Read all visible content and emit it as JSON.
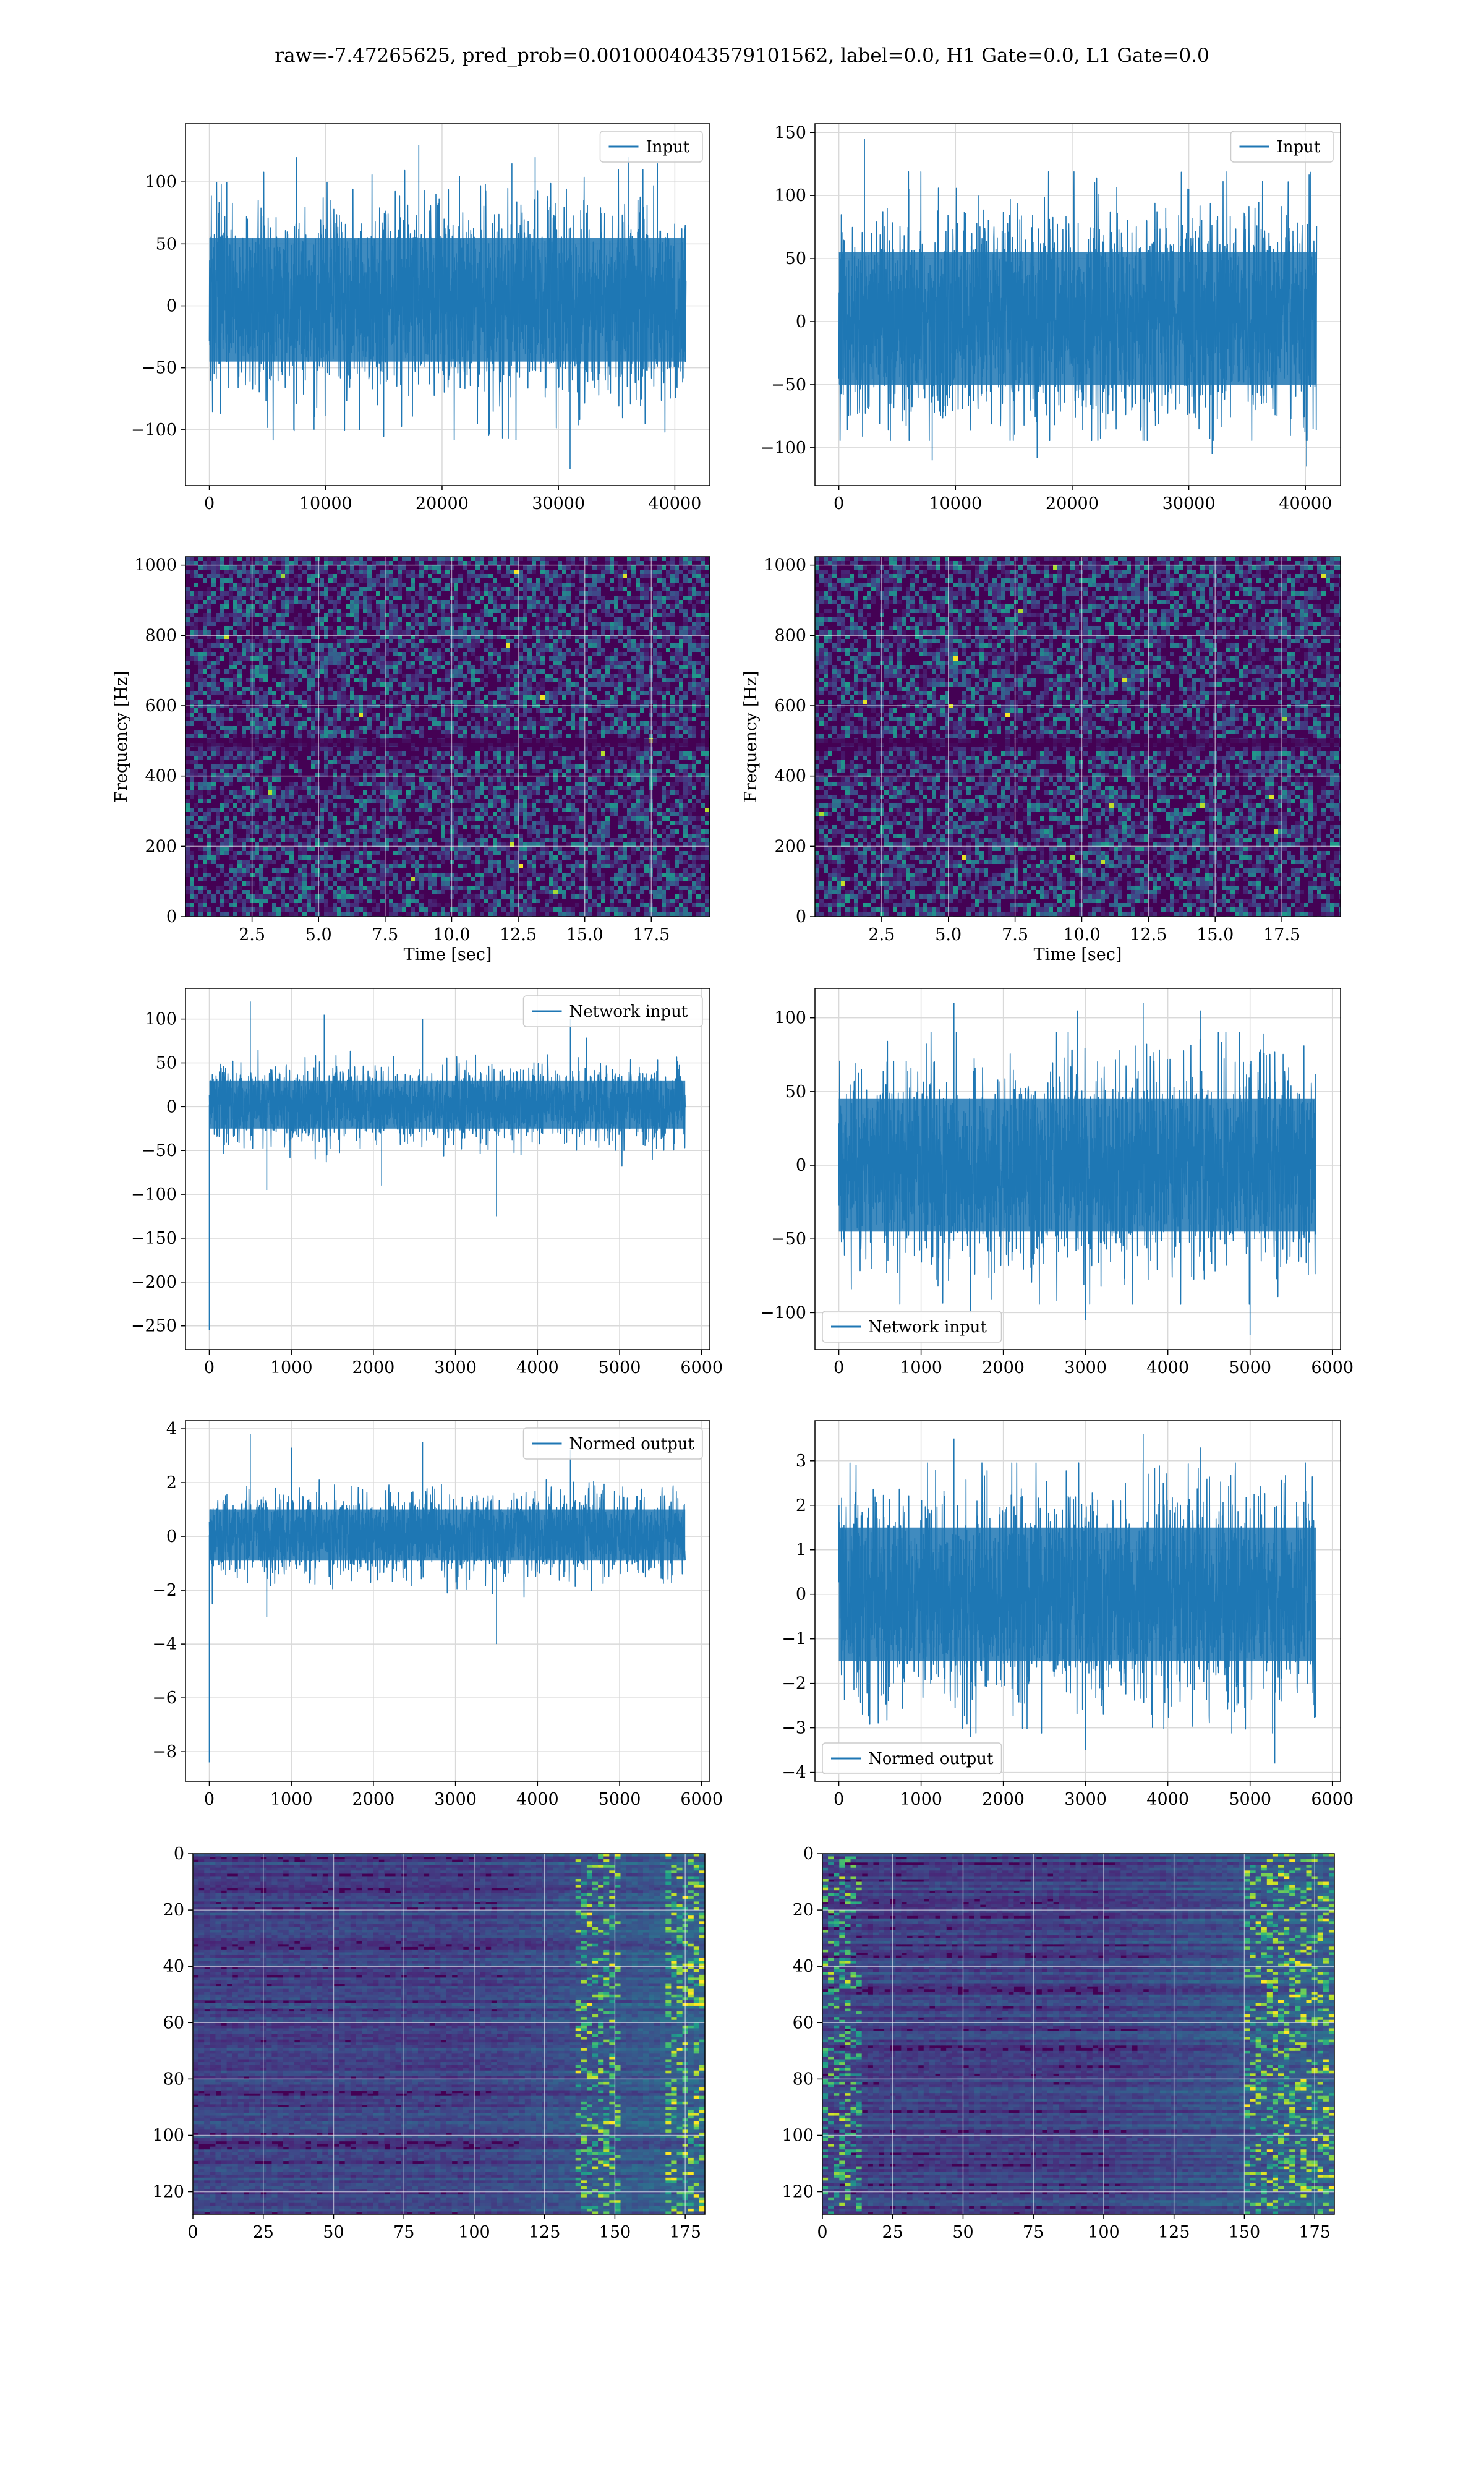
{
  "figure": {
    "title": "raw=-7.47265625, pred_prob=0.0010004043579101562, label=0.0, H1 Gate=0.0, L1 Gate=0.0"
  },
  "colors": {
    "line": "#1f77b4",
    "grid": "#d9d9d9",
    "viridis_dark": "#440154",
    "viridis_mid": "#21918c",
    "viridis_light": "#fde725"
  },
  "chart_data": [
    {
      "id": "r0c0",
      "type": "line",
      "legend": "Input",
      "legend_loc": "top-right",
      "grid": true,
      "x_range": [
        0,
        40960
      ],
      "xlim": [
        -2048,
        43008
      ],
      "ylim": [
        -145,
        147
      ],
      "x_ticks": [
        0,
        10000,
        20000,
        30000,
        40000
      ],
      "x_tick_labels": [
        "0",
        "10000",
        "20000",
        "30000",
        "40000"
      ],
      "y_ticks": [
        -100,
        -50,
        0,
        50,
        100
      ],
      "y_tick_labels": [
        "−100",
        "−50",
        "0",
        "50",
        "100"
      ],
      "envelope": {
        "core": [
          -45,
          55
        ],
        "peak": [
          -132,
          134
        ]
      },
      "spikes": [
        [
          1500,
          100
        ],
        [
          7500,
          120
        ],
        [
          18000,
          130
        ],
        [
          21500,
          105
        ],
        [
          26000,
          115
        ],
        [
          28000,
          120
        ],
        [
          31000,
          -132
        ],
        [
          36000,
          120
        ],
        [
          38500,
          115
        ],
        [
          9000,
          -100
        ],
        [
          24000,
          -105
        ]
      ]
    },
    {
      "id": "r0c1",
      "type": "line",
      "legend": "Input",
      "legend_loc": "top-right",
      "grid": true,
      "x_range": [
        0,
        40960
      ],
      "xlim": [
        -2048,
        43008
      ],
      "ylim": [
        -130,
        157
      ],
      "x_ticks": [
        0,
        10000,
        20000,
        30000,
        40000
      ],
      "x_tick_labels": [
        "0",
        "10000",
        "20000",
        "30000",
        "40000"
      ],
      "y_ticks": [
        -100,
        -50,
        0,
        50,
        100,
        150
      ],
      "y_tick_labels": [
        "−100",
        "−50",
        "0",
        "50",
        "100",
        "150"
      ],
      "envelope": {
        "core": [
          -50,
          55
        ],
        "peak": [
          -115,
          145
        ]
      },
      "spikes": [
        [
          2200,
          145
        ],
        [
          6000,
          105
        ],
        [
          12000,
          100
        ],
        [
          18000,
          110
        ],
        [
          30000,
          105
        ],
        [
          36000,
          95
        ],
        [
          8000,
          -110
        ],
        [
          17000,
          -108
        ],
        [
          32000,
          -105
        ],
        [
          40100,
          -115
        ]
      ]
    },
    {
      "id": "r1c0",
      "type": "heatmap",
      "grid": true,
      "xlabel": "Time [sec]",
      "ylabel": "Frequency [Hz]",
      "xlim": [
        0,
        19.7
      ],
      "ylim": [
        0,
        1024
      ],
      "x_ticks": [
        2.5,
        5.0,
        7.5,
        10.0,
        12.5,
        15.0,
        17.5
      ],
      "x_tick_labels": [
        "2.5",
        "5.0",
        "7.5",
        "10.0",
        "12.5",
        "15.0",
        "17.5"
      ],
      "y_ticks": [
        0,
        200,
        400,
        600,
        800,
        1000
      ],
      "y_tick_labels": [
        "0",
        "200",
        "400",
        "600",
        "800",
        "1000"
      ],
      "colormap": "viridis",
      "texture": "noise",
      "dark_band_y": [
        505,
        485
      ]
    },
    {
      "id": "r1c1",
      "type": "heatmap",
      "grid": true,
      "xlabel": "Time [sec]",
      "ylabel": "Frequency [Hz]",
      "xlim": [
        0,
        19.7
      ],
      "ylim": [
        0,
        1024
      ],
      "x_ticks": [
        2.5,
        5.0,
        7.5,
        10.0,
        12.5,
        15.0,
        17.5
      ],
      "x_tick_labels": [
        "2.5",
        "5.0",
        "7.5",
        "10.0",
        "12.5",
        "15.0",
        "17.5"
      ],
      "y_ticks": [
        0,
        200,
        400,
        600,
        800,
        1000
      ],
      "y_tick_labels": [
        "0",
        "200",
        "400",
        "600",
        "800",
        "1000"
      ],
      "colormap": "viridis",
      "texture": "noise",
      "dark_band_y": [
        505,
        485
      ]
    },
    {
      "id": "r2c0",
      "type": "line",
      "legend": "Network input",
      "legend_loc": "top-right",
      "grid": true,
      "x_range": [
        0,
        5800
      ],
      "xlim": [
        -290,
        6100
      ],
      "ylim": [
        -277,
        135
      ],
      "x_ticks": [
        0,
        1000,
        2000,
        3000,
        4000,
        5000,
        6000
      ],
      "x_tick_labels": [
        "0",
        "1000",
        "2000",
        "3000",
        "4000",
        "5000",
        "6000"
      ],
      "y_ticks": [
        -250,
        -200,
        -150,
        -100,
        -50,
        0,
        50,
        100
      ],
      "y_tick_labels": [
        "−250",
        "−200",
        "−150",
        "−100",
        "−50",
        "0",
        "50",
        "100"
      ],
      "envelope": {
        "core": [
          -25,
          30
        ],
        "peak": [
          -100,
          120
        ]
      },
      "spikes": [
        [
          0,
          -255
        ],
        [
          500,
          120
        ],
        [
          1400,
          105
        ],
        [
          2600,
          100
        ],
        [
          3500,
          -125
        ],
        [
          4400,
          100
        ],
        [
          700,
          -95
        ],
        [
          2100,
          -90
        ]
      ]
    },
    {
      "id": "r2c1",
      "type": "line",
      "legend": "Network input",
      "legend_loc": "bottom-left",
      "grid": true,
      "x_range": [
        0,
        5800
      ],
      "xlim": [
        -290,
        6100
      ],
      "ylim": [
        -125,
        120
      ],
      "x_ticks": [
        0,
        1000,
        2000,
        3000,
        4000,
        5000,
        6000
      ],
      "x_tick_labels": [
        "0",
        "1000",
        "2000",
        "3000",
        "4000",
        "5000",
        "6000"
      ],
      "y_ticks": [
        -100,
        -50,
        0,
        50,
        100
      ],
      "y_tick_labels": [
        "−100",
        "−50",
        "0",
        "50",
        "100"
      ],
      "envelope": {
        "core": [
          -45,
          45
        ],
        "peak": [
          -115,
          110
        ]
      },
      "spikes": [
        [
          1400,
          110
        ],
        [
          2900,
          105
        ],
        [
          3700,
          110
        ],
        [
          4400,
          105
        ],
        [
          3000,
          -105
        ],
        [
          5000,
          -115
        ],
        [
          1600,
          -100
        ]
      ]
    },
    {
      "id": "r3c0",
      "type": "line",
      "legend": "Normed output",
      "legend_loc": "top-right",
      "grid": true,
      "x_range": [
        0,
        5800
      ],
      "xlim": [
        -290,
        6100
      ],
      "ylim": [
        -9.1,
        4.3
      ],
      "x_ticks": [
        0,
        1000,
        2000,
        3000,
        4000,
        5000,
        6000
      ],
      "x_tick_labels": [
        "0",
        "1000",
        "2000",
        "3000",
        "4000",
        "5000",
        "6000"
      ],
      "y_ticks": [
        -8,
        -6,
        -4,
        -2,
        0,
        2,
        4
      ],
      "y_tick_labels": [
        "−8",
        "−6",
        "−4",
        "−2",
        "0",
        "2",
        "4"
      ],
      "envelope": {
        "core": [
          -0.9,
          1.0
        ],
        "peak": [
          -3.2,
          3.8
        ]
      },
      "spikes": [
        [
          0,
          -8.4
        ],
        [
          500,
          3.8
        ],
        [
          1000,
          3.3
        ],
        [
          2600,
          3.5
        ],
        [
          3500,
          -4.0
        ],
        [
          4400,
          3.2
        ],
        [
          700,
          -3.0
        ]
      ]
    },
    {
      "id": "r3c1",
      "type": "line",
      "legend": "Normed output",
      "legend_loc": "bottom-left",
      "grid": true,
      "x_range": [
        0,
        5800
      ],
      "xlim": [
        -290,
        6100
      ],
      "ylim": [
        -4.2,
        3.9
      ],
      "x_ticks": [
        0,
        1000,
        2000,
        3000,
        4000,
        5000,
        6000
      ],
      "x_tick_labels": [
        "0",
        "1000",
        "2000",
        "3000",
        "4000",
        "5000",
        "6000"
      ],
      "y_ticks": [
        -4,
        -3,
        -2,
        -1,
        0,
        1,
        2,
        3
      ],
      "y_tick_labels": [
        "−4",
        "−3",
        "−2",
        "−1",
        "0",
        "1",
        "2",
        "3"
      ],
      "envelope": {
        "core": [
          -1.5,
          1.5
        ],
        "peak": [
          -3.8,
          3.6
        ]
      },
      "spikes": [
        [
          1400,
          3.5
        ],
        [
          3700,
          3.6
        ],
        [
          4400,
          3.3
        ],
        [
          3000,
          -3.5
        ],
        [
          5300,
          -3.8
        ],
        [
          1600,
          -3.2
        ]
      ]
    },
    {
      "id": "r4c0",
      "type": "heatmap",
      "grid": true,
      "y_inverted": true,
      "xlim": [
        0,
        182
      ],
      "ylim": [
        128,
        0
      ],
      "x_ticks": [
        0,
        25,
        50,
        75,
        100,
        125,
        150,
        175
      ],
      "x_tick_labels": [
        "0",
        "25",
        "50",
        "75",
        "100",
        "125",
        "150",
        "175"
      ],
      "y_ticks": [
        0,
        20,
        40,
        60,
        80,
        100,
        120
      ],
      "y_tick_labels": [
        "0",
        "20",
        "40",
        "60",
        "80",
        "100",
        "120"
      ],
      "colormap": "viridis",
      "texture": "rows",
      "bright_x": [
        [
          135,
          150
        ],
        [
          168,
          182
        ]
      ]
    },
    {
      "id": "r4c1",
      "type": "heatmap",
      "grid": true,
      "y_inverted": true,
      "xlim": [
        0,
        182
      ],
      "ylim": [
        128,
        0
      ],
      "x_ticks": [
        0,
        25,
        50,
        75,
        100,
        125,
        150,
        175
      ],
      "x_tick_labels": [
        "0",
        "25",
        "50",
        "75",
        "100",
        "125",
        "150",
        "175"
      ],
      "y_ticks": [
        0,
        20,
        40,
        60,
        80,
        100,
        120
      ],
      "y_tick_labels": [
        "0",
        "20",
        "40",
        "60",
        "80",
        "100",
        "120"
      ],
      "colormap": "viridis",
      "texture": "rows",
      "bright_x": [
        [
          0,
          12
        ],
        [
          150,
          182
        ]
      ]
    }
  ]
}
